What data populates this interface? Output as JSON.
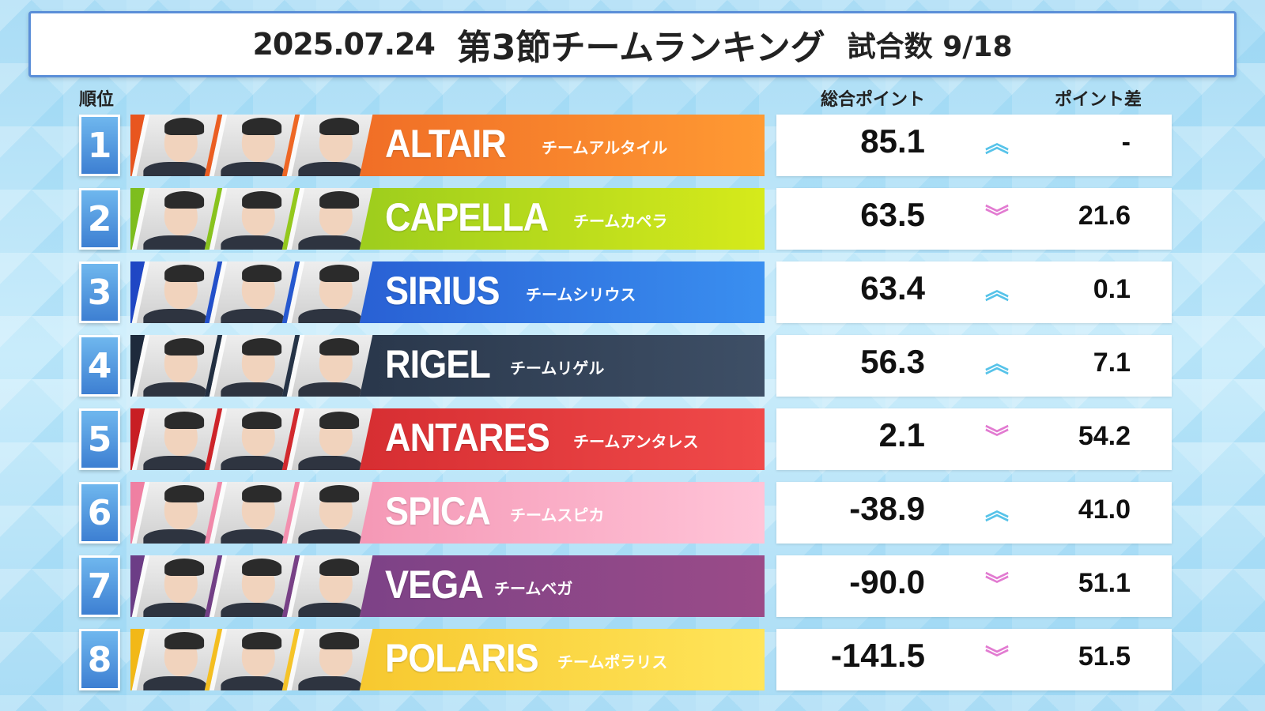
{
  "header": {
    "date": "2025.07.24",
    "title": "第3節チームランキング",
    "games": "試合数 9/18"
  },
  "columns": {
    "rank": "順位",
    "total_points": "総合ポイント",
    "point_diff": "ポイント差"
  },
  "teams": [
    {
      "rank": "1",
      "name": "ALTAIR",
      "kana": "チームアルタイル",
      "points": "85.1",
      "trend": "up",
      "diff": "-",
      "color_from": "#e8551f",
      "color_to": "#ff9a33",
      "kana_offset": 520
    },
    {
      "rank": "2",
      "name": "CAPELLA",
      "kana": "チームカペラ",
      "points": "63.5",
      "trend": "down",
      "diff": "21.6",
      "color_from": "#7dbd1e",
      "color_to": "#d6ea1b",
      "kana_offset": 560
    },
    {
      "rank": "3",
      "name": "SIRIUS",
      "kana": "チームシリウス",
      "points": "63.4",
      "trend": "up",
      "diff": "0.1",
      "color_from": "#1f46c4",
      "color_to": "#3a8ff0",
      "kana_offset": 500
    },
    {
      "rank": "4",
      "name": "RIGEL",
      "kana": "チームリゲル",
      "points": "56.3",
      "trend": "up",
      "diff": "7.1",
      "color_from": "#1e2a3c",
      "color_to": "#3e4f66",
      "kana_offset": 480
    },
    {
      "rank": "5",
      "name": "ANTARES",
      "kana": "チームアンタレス",
      "points": "2.1",
      "trend": "down",
      "diff": "54.2",
      "color_from": "#c81e24",
      "color_to": "#f04a4a",
      "kana_offset": 560
    },
    {
      "rank": "6",
      "name": "SPICA",
      "kana": "チームスピカ",
      "points": "-38.9",
      "trend": "up",
      "diff": "41.0",
      "color_from": "#ef7fa2",
      "color_to": "#ffc4d8",
      "kana_offset": 480
    },
    {
      "rank": "7",
      "name": "VEGA",
      "kana": "チームベガ",
      "points": "-90.0",
      "trend": "down",
      "diff": "51.1",
      "color_from": "#6c3d86",
      "color_to": "#9a4b88",
      "kana_offset": 460
    },
    {
      "rank": "8",
      "name": "POLARIS",
      "kana": "チームポラリス",
      "points": "-141.5",
      "trend": "down",
      "diff": "51.5",
      "color_from": "#f2b817",
      "color_to": "#ffe55a",
      "kana_offset": 540
    }
  ],
  "icons": {
    "up": "double-chevron-up-icon",
    "down": "double-chevron-down-icon"
  }
}
